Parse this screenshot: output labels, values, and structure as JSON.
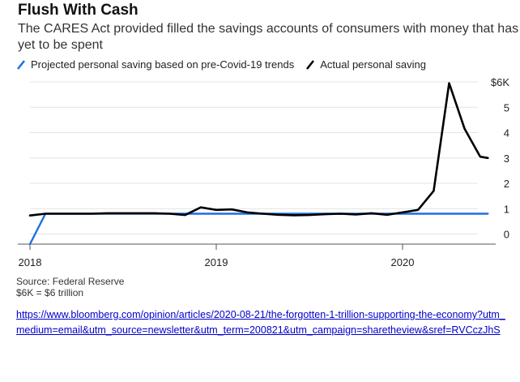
{
  "header": {
    "title": "Flush With Cash",
    "subtitle": "The CARES Act provided filled the savings accounts of consumers with money that has yet to be spent"
  },
  "legend": [
    {
      "label": "Projected personal saving based on pre-Covid-19 trends",
      "color": "#1e6fe0"
    },
    {
      "label": "Actual personal saving",
      "color": "#000000"
    }
  ],
  "footer": {
    "source": "Source: Federal Reserve",
    "note": "$6K = $6 trillion"
  },
  "link": {
    "text": "https://www.bloomberg.com/opinion/articles/2020-08-21/the-forgotten-1-trillion-supporting-the-economy?utm_medium=email&utm_source=newsletter&utm_term=200821&utm_campaign=sharetheview&sref=RVCczJhS"
  },
  "chart_data": {
    "type": "line",
    "x_ticks": [
      "2018",
      "2019",
      "2020"
    ],
    "y_ticks": [
      "$6K",
      "5",
      "4",
      "3",
      "2",
      "1",
      "0"
    ],
    "ylim": [
      -0.4,
      6
    ],
    "xlim": [
      2018.0,
      2020.5
    ],
    "grid": true,
    "series": [
      {
        "name": "Projected personal saving based on pre-Covid-19 trends",
        "color": "#1e6fe0",
        "x": [
          2018.0,
          2018.083,
          2020.458
        ],
        "y": [
          -0.4,
          0.8,
          0.8
        ]
      },
      {
        "name": "Actual personal saving",
        "color": "#000000",
        "x": [
          2018.0,
          2018.083,
          2018.167,
          2018.25,
          2018.333,
          2018.417,
          2018.5,
          2018.583,
          2018.667,
          2018.75,
          2018.833,
          2018.917,
          2019.0,
          2019.083,
          2019.167,
          2019.25,
          2019.333,
          2019.417,
          2019.5,
          2019.583,
          2019.667,
          2019.75,
          2019.833,
          2019.917,
          2020.0,
          2020.083,
          2020.167,
          2020.25,
          2020.333,
          2020.417,
          2020.458
        ],
        "y": [
          0.73,
          0.8,
          0.8,
          0.8,
          0.8,
          0.82,
          0.82,
          0.82,
          0.82,
          0.8,
          0.75,
          1.05,
          0.95,
          0.97,
          0.85,
          0.8,
          0.76,
          0.74,
          0.75,
          0.78,
          0.8,
          0.77,
          0.82,
          0.76,
          0.85,
          0.95,
          1.7,
          5.95,
          4.15,
          3.05,
          3.0
        ]
      }
    ]
  }
}
